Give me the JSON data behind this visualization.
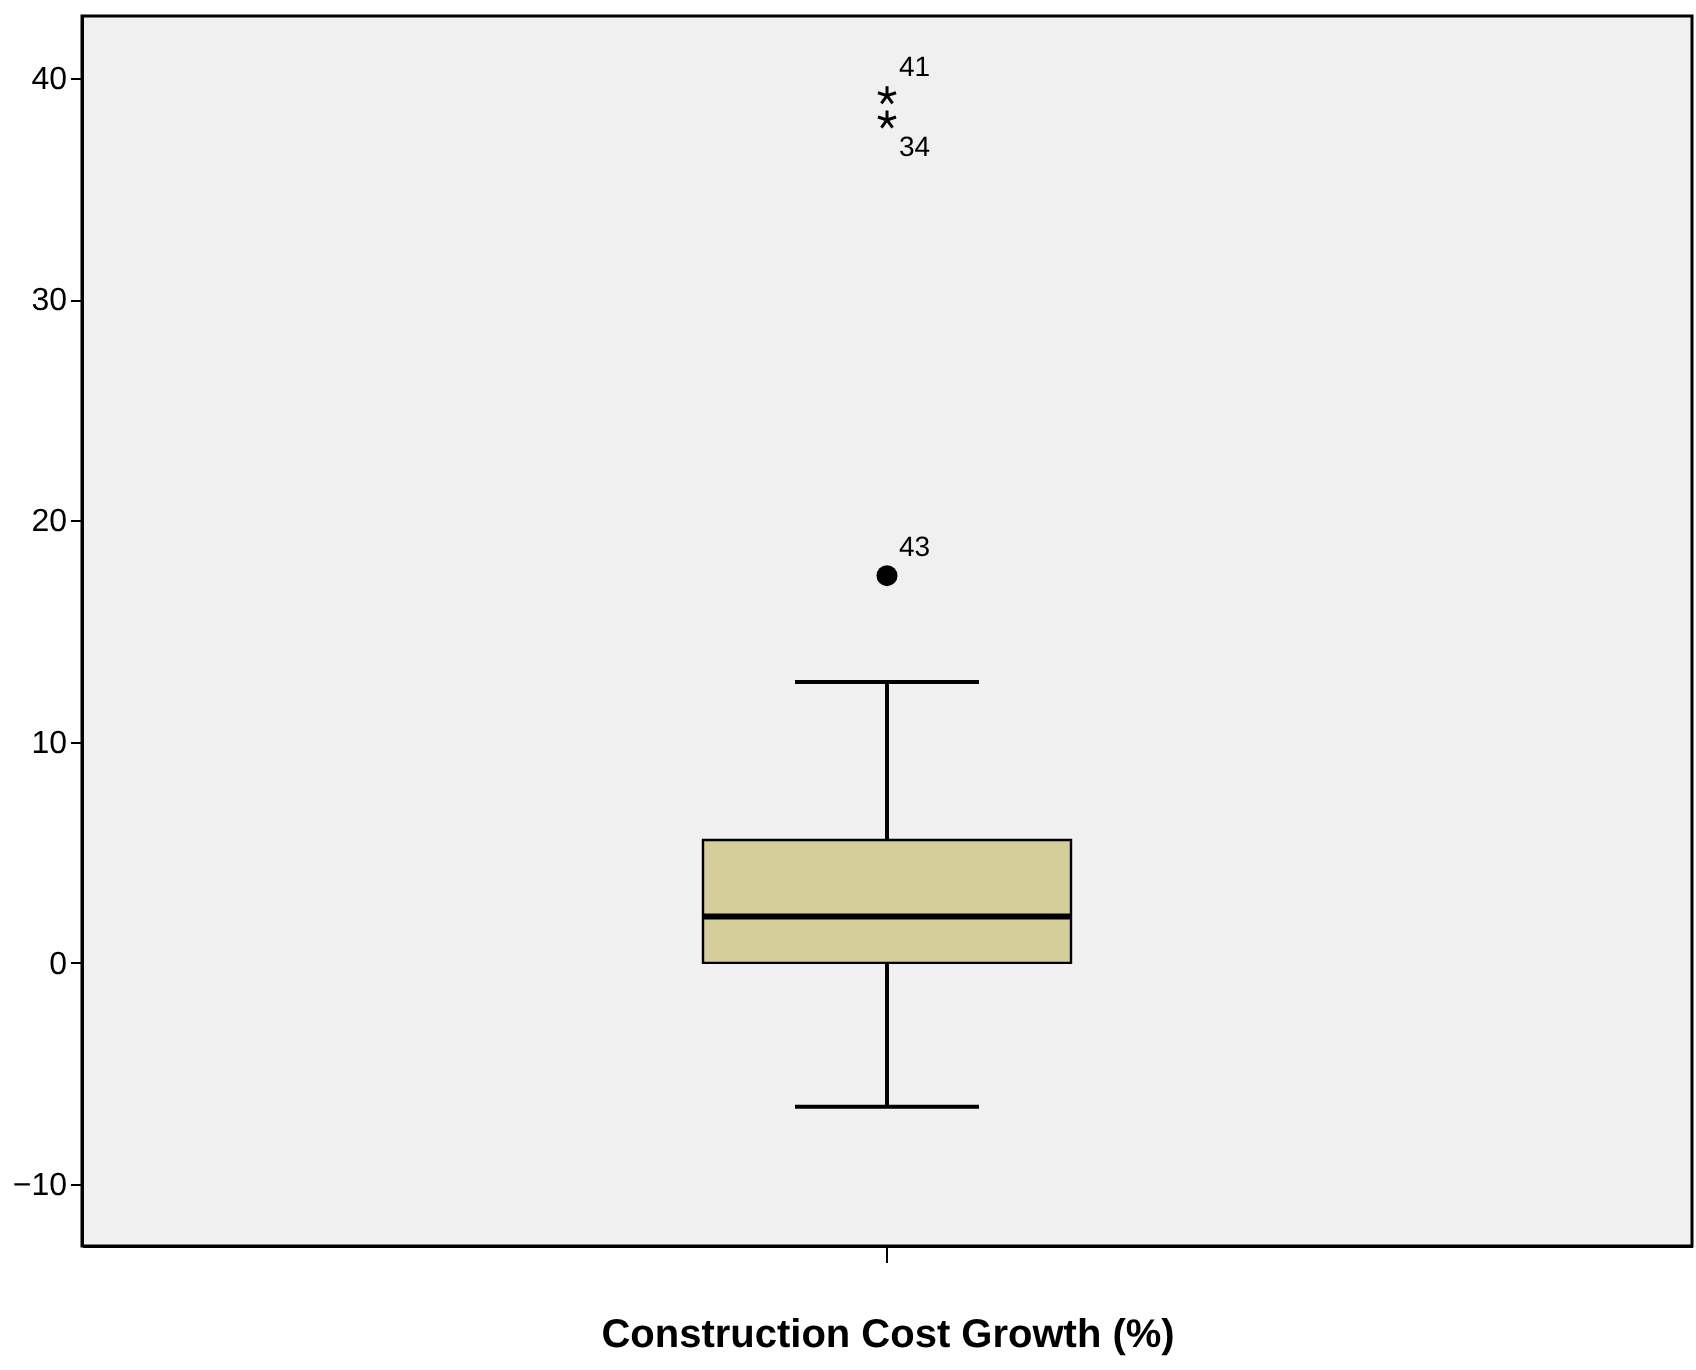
{
  "chart_data": {
    "type": "box",
    "xlabel": "Construction Cost Growth (%)",
    "categories": [
      null
    ],
    "boxes": [
      {
        "low": -6.5,
        "q1": 0.0,
        "median": 2.1,
        "q3": 5.55,
        "high": 12.7,
        "outliers": [
          17.5,
          38.1,
          39.2
        ]
      }
    ],
    "color": "#d3ce9a",
    "ylim": [
      -12.8,
      42.8
    ],
    "yticks": [
      -10,
      0,
      10,
      20,
      30,
      40
    ],
    "grid": false,
    "annotations": [
      "43",
      "34",
      "41"
    ]
  }
}
